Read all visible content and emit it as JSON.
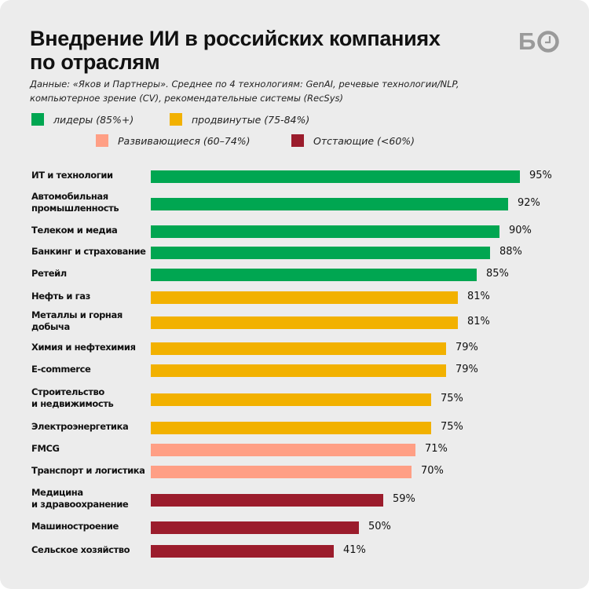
{
  "header": {
    "title_line1": "Внедрение ИИ в российских компаниях",
    "title_line2": "по отраслям",
    "logo_text": "БО",
    "subtitle_line1": "Данные: «Яков и Партнеры». Среднее по 4 технологиям: GenAI, речевые технологии/NLP,",
    "subtitle_line2": "компьютерное зрение (CV), рекомендательные системы (RecSys)"
  },
  "colors": {
    "background": "#ececec",
    "leaders": "#00a651",
    "advanced": "#f2b100",
    "developing": "#ff9f85",
    "lagging": "#9b1c2c",
    "logo": "#9a9a9a"
  },
  "chart_data": {
    "type": "bar",
    "orientation": "horizontal",
    "title": "Внедрение ИИ в российских компаниях по отраслям",
    "subtitle": "Данные: «Яков и Партнеры». Среднее по 4 технологиям: GenAI, речевые технологии/NLP, компьютерное зрение (CV), рекомендательные системы (RecSys)",
    "xlabel": "",
    "ylabel": "",
    "unit": "%",
    "grid": false,
    "legend": [
      {
        "key": "leaders",
        "label": "лидеры (85%+)"
      },
      {
        "key": "advanced",
        "label": "продвинутые (75-84%)"
      },
      {
        "key": "developing",
        "label": "Развивающиеся (60–74%)"
      },
      {
        "key": "lagging",
        "label": "Отстающие (<60%)"
      }
    ],
    "legend_position": "top",
    "categories": [
      [
        "ИТ и технологии"
      ],
      [
        "Автомобильная",
        "промышленность"
      ],
      [
        "Телеком и медиа"
      ],
      [
        "Банкинг и страхование"
      ],
      [
        "Ретейл"
      ],
      [
        "Нефть и газ"
      ],
      [
        "Металлы и горная",
        "добыча"
      ],
      [
        "Химия и нефтехимия"
      ],
      [
        "E-commerce"
      ],
      [
        "Строительство",
        "и недвижимость"
      ],
      [
        "Электроэнергетика"
      ],
      [
        "FMCG"
      ],
      [
        "Транспорт и логистика"
      ],
      [
        "Медицина",
        "и здравоохранение"
      ],
      [
        "Машиностроение"
      ],
      [
        "Сельское хозяйство"
      ]
    ],
    "values": [
      95,
      92,
      90,
      88,
      85,
      81,
      81,
      79,
      79,
      75,
      75,
      71,
      70,
      59,
      50,
      41
    ],
    "groups": [
      "leaders",
      "leaders",
      "leaders",
      "leaders",
      "leaders",
      "advanced",
      "advanced",
      "advanced",
      "advanced",
      "advanced",
      "advanced",
      "developing",
      "developing",
      "lagging",
      "lagging",
      "lagging"
    ],
    "value_labels": [
      "95%",
      "92%",
      "90%",
      "88%",
      "85%",
      "81%",
      "81%",
      "79%",
      "79%",
      "75%",
      "75%",
      "71%",
      "70%",
      "59%",
      "50%",
      "41%"
    ]
  }
}
